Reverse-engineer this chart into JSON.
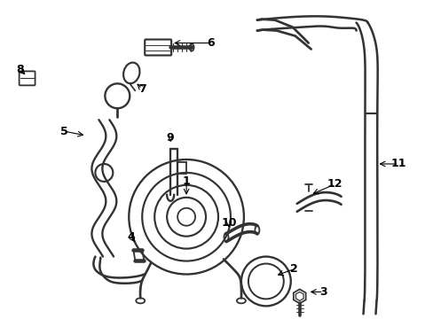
{
  "bg_color": "#ffffff",
  "line_color": "#333333",
  "lw": 1.3,
  "fig_w": 4.89,
  "fig_h": 3.6,
  "dpi": 100
}
